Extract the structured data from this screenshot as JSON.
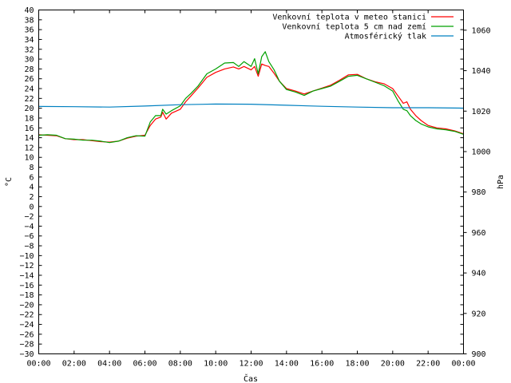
{
  "chart_data": {
    "type": "line",
    "xlabel": "Čas",
    "ylabel_left": "°C",
    "ylabel_right": "hPa",
    "x_ticks": [
      "00:00",
      "02:00",
      "04:00",
      "06:00",
      "08:00",
      "10:00",
      "12:00",
      "14:00",
      "16:00",
      "18:00",
      "20:00",
      "22:00",
      "00:00"
    ],
    "x_range_hours": [
      0,
      24
    ],
    "y_left_range": [
      -30,
      40
    ],
    "y_left_tick_step": 2,
    "y_right_range": [
      900,
      1070
    ],
    "y_right_ticks": [
      900,
      920,
      940,
      960,
      980,
      1000,
      1020,
      1040,
      1060
    ],
    "grid": false,
    "legend_position": "top-right",
    "series": [
      {
        "name": "Venkovní teplota v meteo stanici",
        "axis": "left",
        "color": "#ff0000",
        "x_hours": [
          0,
          0.5,
          1,
          1.5,
          2,
          2.5,
          3,
          3.5,
          4,
          4.5,
          5,
          5.5,
          6,
          6.3,
          6.6,
          6.9,
          7,
          7.2,
          7.5,
          8,
          8.3,
          8.6,
          9,
          9.5,
          10,
          10.5,
          11,
          11.3,
          11.6,
          12,
          12.2,
          12.4,
          12.6,
          12.8,
          13,
          13.3,
          13.6,
          14,
          14.5,
          15,
          15.5,
          16,
          16.5,
          17,
          17.5,
          18,
          18.5,
          19,
          19.5,
          20,
          20.3,
          20.6,
          20.8,
          21,
          21.3,
          21.6,
          22,
          22.5,
          23,
          23.5,
          24
        ],
        "values": [
          14.6,
          14.5,
          14.4,
          13.8,
          13.6,
          13.6,
          13.4,
          13.2,
          13.1,
          13.3,
          13.9,
          14.3,
          14.5,
          16.5,
          17.8,
          18.2,
          19.2,
          17.8,
          19.0,
          19.8,
          21.3,
          22.5,
          24.1,
          26.3,
          27.3,
          28.0,
          28.4,
          28.0,
          28.5,
          27.8,
          28.5,
          26.5,
          29.0,
          28.7,
          28.5,
          27.1,
          25.5,
          24.0,
          23.5,
          22.9,
          23.5,
          24.1,
          24.7,
          25.7,
          26.8,
          26.9,
          26.0,
          25.4,
          25.0,
          24.0,
          22.5,
          21.0,
          21.3,
          19.8,
          18.5,
          17.5,
          16.5,
          16.0,
          15.8,
          15.4,
          14.8
        ]
      },
      {
        "name": "Venkovní teplota 5 cm nad zemí",
        "axis": "left",
        "color": "#00a000",
        "x_hours": [
          0,
          0.5,
          1,
          1.5,
          2,
          2.5,
          3,
          3.5,
          4,
          4.5,
          5,
          5.5,
          6,
          6.3,
          6.6,
          6.9,
          7,
          7.2,
          7.5,
          8,
          8.3,
          8.6,
          9,
          9.5,
          10,
          10.5,
          11,
          11.3,
          11.6,
          12,
          12.2,
          12.4,
          12.6,
          12.8,
          13,
          13.3,
          13.6,
          14,
          14.5,
          15,
          15.5,
          16,
          16.5,
          17,
          17.5,
          18,
          18.5,
          19,
          19.5,
          20,
          20.3,
          20.6,
          20.8,
          21,
          21.3,
          21.6,
          22,
          22.5,
          23,
          23.5,
          24
        ],
        "values": [
          14.5,
          14.6,
          14.5,
          13.8,
          13.7,
          13.5,
          13.5,
          13.3,
          13.0,
          13.3,
          14.0,
          14.4,
          14.3,
          17.2,
          18.5,
          18.5,
          19.8,
          18.8,
          19.5,
          20.5,
          22.0,
          23.0,
          24.5,
          27.0,
          28.0,
          29.2,
          29.3,
          28.5,
          29.5,
          28.5,
          30.1,
          27.0,
          30.5,
          31.5,
          29.5,
          27.8,
          25.5,
          23.8,
          23.3,
          22.6,
          23.5,
          24.0,
          24.5,
          25.5,
          26.5,
          26.7,
          26.0,
          25.3,
          24.6,
          23.5,
          21.5,
          19.8,
          19.5,
          18.5,
          17.5,
          16.8,
          16.2,
          15.8,
          15.6,
          15.3,
          14.7
        ]
      },
      {
        "name": "Atmosférický tlak",
        "axis": "right",
        "color": "#0080c0",
        "x_hours": [
          0,
          2,
          4,
          6,
          8,
          10,
          12,
          14,
          16,
          18,
          20,
          22,
          24
        ],
        "values": [
          1022.3,
          1022.2,
          1022.0,
          1022.5,
          1023.2,
          1023.5,
          1023.4,
          1022.9,
          1022.4,
          1022.0,
          1021.7,
          1021.7,
          1021.5
        ]
      }
    ]
  }
}
